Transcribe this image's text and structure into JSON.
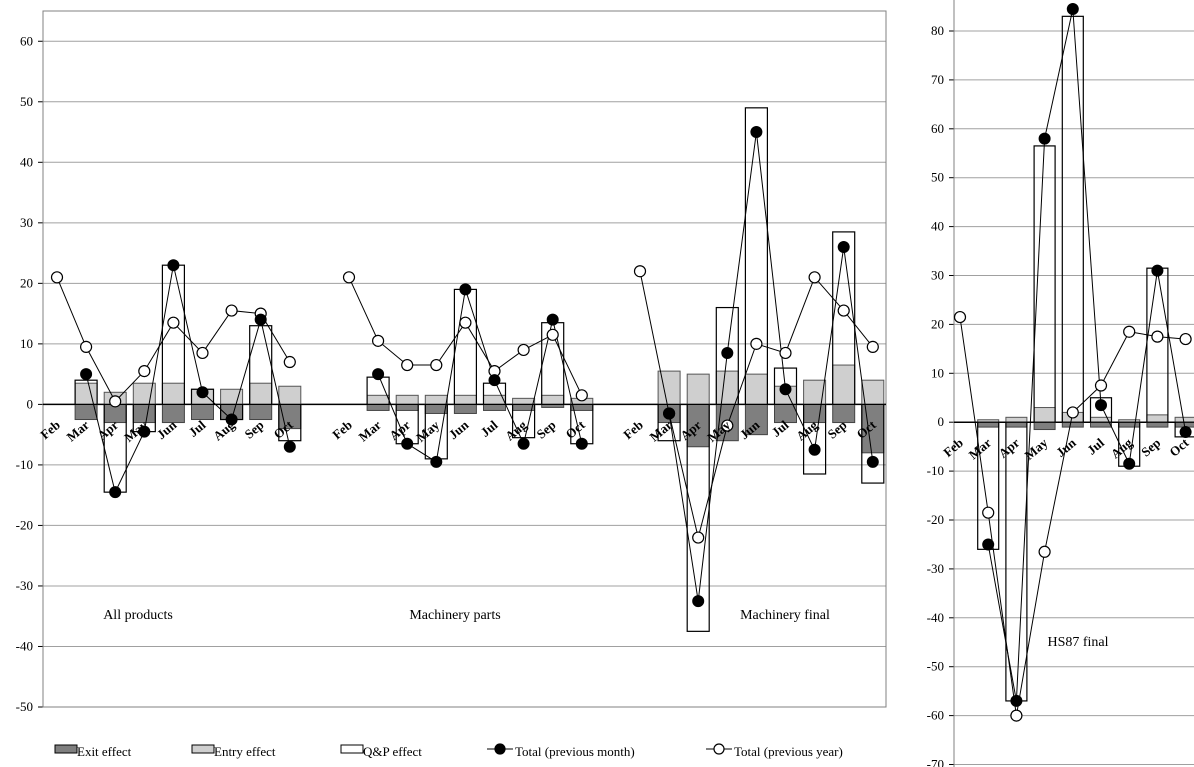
{
  "chart_data": [
    {
      "type": "bar",
      "legend": {
        "position": "bottom",
        "items": [
          {
            "key": "exit",
            "label": "Exit effect"
          },
          {
            "key": "entry",
            "label": "Entry effect"
          },
          {
            "key": "qp",
            "label": "Q&P effect"
          },
          {
            "key": "prev_month",
            "label": "Total (previous month)"
          },
          {
            "key": "prev_year",
            "label": "Total (previous year)"
          }
        ]
      },
      "ylim": [
        -50,
        65
      ],
      "yticks": [
        60,
        50,
        40,
        30,
        20,
        10,
        0,
        -10,
        -20,
        -30,
        -40,
        -50
      ],
      "grid": true,
      "colors": {
        "exit": "#7f7f7f",
        "entry": "#cfcfcf",
        "qp": "#ffffff"
      },
      "panels": [
        {
          "label": "All products",
          "categories": [
            "Feb",
            "Mar",
            "Apr",
            "May",
            "Jun",
            "Jul",
            "Aug",
            "Sep",
            "Oct"
          ],
          "exit": [
            null,
            -2.5,
            -3,
            -3,
            -3,
            -2.5,
            -2.5,
            -2.5,
            -4
          ],
          "entry": [
            null,
            3.5,
            2,
            3.5,
            3.5,
            2.5,
            2.5,
            3.5,
            3
          ],
          "qp": [
            null,
            4,
            -14.5,
            -4.5,
            23,
            2.5,
            -2.5,
            13,
            -6
          ],
          "prev_month": [
            null,
            5,
            -14.5,
            -4.5,
            23,
            2,
            -2.5,
            14,
            -7
          ],
          "prev_year": [
            21,
            9.5,
            0.5,
            5.5,
            13.5,
            8.5,
            15.5,
            15,
            7
          ]
        },
        {
          "label": "Machinery parts",
          "categories": [
            "Feb",
            "Mar",
            "Apr",
            "May",
            "Jun",
            "Jul",
            "Aug",
            "Sep",
            "Oct"
          ],
          "exit": [
            null,
            -1,
            -1,
            -1.5,
            -1.5,
            -1,
            -1,
            -0.5,
            -1
          ],
          "entry": [
            null,
            1.5,
            1.5,
            1.5,
            1.5,
            1.5,
            1,
            1.5,
            1
          ],
          "qp": [
            null,
            4.5,
            -6.5,
            -9,
            19,
            3.5,
            -5.5,
            13.5,
            -6.5
          ],
          "prev_month": [
            null,
            5,
            -6.5,
            -9.5,
            19,
            4,
            -6.5,
            14,
            -6.5
          ],
          "prev_year": [
            21,
            10.5,
            6.5,
            6.5,
            13.5,
            5.5,
            9,
            11.5,
            1.5
          ]
        },
        {
          "label": "Machinery final",
          "categories": [
            "Feb",
            "Mar",
            "Apr",
            "May",
            "Jun",
            "Jul",
            "Aug",
            "Sep",
            "Oct"
          ],
          "exit": [
            null,
            -3,
            -7,
            -6,
            -5,
            -3,
            -3,
            -3,
            -8
          ],
          "entry": [
            null,
            5.5,
            5,
            5.5,
            5,
            3,
            4,
            6.5,
            4
          ],
          "qp": [
            null,
            -6,
            -37.5,
            16,
            49,
            6,
            -11.5,
            28.5,
            -13
          ],
          "prev_month": [
            null,
            -1.5,
            -32.5,
            8.5,
            45,
            2.5,
            -7.5,
            26,
            -9.5
          ],
          "prev_year": [
            22,
            -1.5,
            -22,
            -3.5,
            10,
            8.5,
            21,
            15.5,
            9.5
          ]
        }
      ]
    },
    {
      "type": "bar",
      "label": "HS87 final",
      "ylim": [
        -70,
        85
      ],
      "yticks": [
        80,
        70,
        60,
        50,
        40,
        30,
        20,
        10,
        0,
        -10,
        -20,
        -30,
        -40,
        -50,
        -60,
        -70
      ],
      "grid": true,
      "categories": [
        "Feb",
        "Mar",
        "Apr",
        "May",
        "Jun",
        "Jul",
        "Aug",
        "Sep",
        "Oct"
      ],
      "exit": [
        null,
        -1,
        -1,
        -1.5,
        -1,
        -1,
        -1,
        -1,
        -1
      ],
      "entry": [
        null,
        0.5,
        1,
        3,
        2,
        1,
        0.5,
        1.5,
        1
      ],
      "qp": [
        null,
        -26,
        -57,
        56.5,
        83,
        5,
        -9,
        31.5,
        -3
      ],
      "prev_month": [
        null,
        -25,
        -57,
        58,
        84.5,
        3.5,
        -8.5,
        31,
        -2
      ],
      "prev_year": [
        21.5,
        -18.5,
        -60,
        -26.5,
        2,
        7.5,
        18.5,
        17.5,
        17
      ]
    }
  ]
}
